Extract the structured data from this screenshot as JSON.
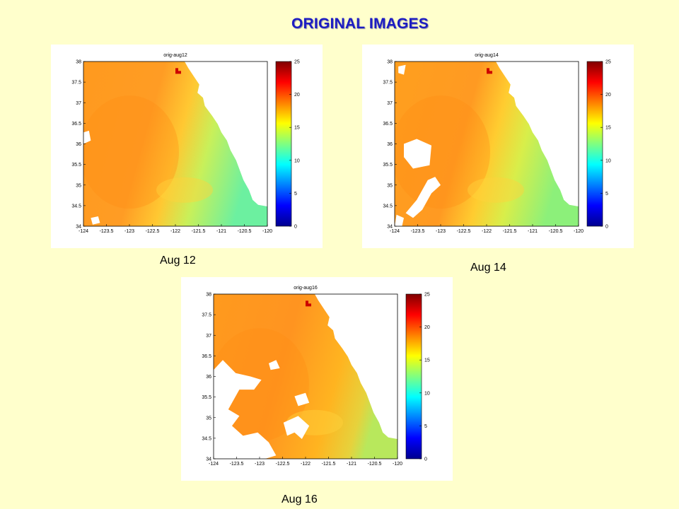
{
  "slide_title": "ORIGINAL IMAGES",
  "colors": {
    "background": "#ffffcc",
    "title": "#1c1cc2",
    "colormap": [
      "#00008f",
      "#0000ff",
      "#0080ff",
      "#00ffff",
      "#80ff80",
      "#ffff00",
      "#ff8000",
      "#ff0000",
      "#800000"
    ]
  },
  "panels": [
    {
      "id": "aug12",
      "plot_title": "orig-aug12",
      "caption": "Aug 12",
      "x_ticks": [
        "-124",
        "-123.5",
        "-123",
        "-122.5",
        "-122",
        "-121.5",
        "-121",
        "-120.5",
        "-120"
      ],
      "y_ticks": [
        "38",
        "37.5",
        "37",
        "36.5",
        "36",
        "35.5",
        "35",
        "34.5",
        "34"
      ],
      "colorbar_ticks": [
        "25",
        "20",
        "15",
        "10",
        "5",
        "0"
      ],
      "missing_data": "small"
    },
    {
      "id": "aug14",
      "plot_title": "orig-aug14",
      "caption": "Aug 14",
      "x_ticks": [
        "-124",
        "-123.5",
        "-123",
        "-122.5",
        "-122",
        "-121.5",
        "-121",
        "-120.5",
        "-120"
      ],
      "y_ticks": [
        "38",
        "37.5",
        "37",
        "36.5",
        "36",
        "35.5",
        "35",
        "34.5",
        "34"
      ],
      "colorbar_ticks": [
        "25",
        "20",
        "15",
        "10",
        "5",
        "0"
      ],
      "missing_data": "medium"
    },
    {
      "id": "aug16",
      "plot_title": "orig-aug16",
      "caption": "Aug 16",
      "x_ticks": [
        "-124",
        "-123.5",
        "-123",
        "-122.5",
        "-122",
        "-121.5",
        "-121",
        "-120.5",
        "-120"
      ],
      "y_ticks": [
        "38",
        "37.5",
        "37",
        "36.5",
        "36",
        "35.5",
        "35",
        "34.5",
        "34"
      ],
      "colorbar_ticks": [
        "25",
        "20",
        "15",
        "10",
        "5",
        "0"
      ],
      "missing_data": "large"
    }
  ]
}
